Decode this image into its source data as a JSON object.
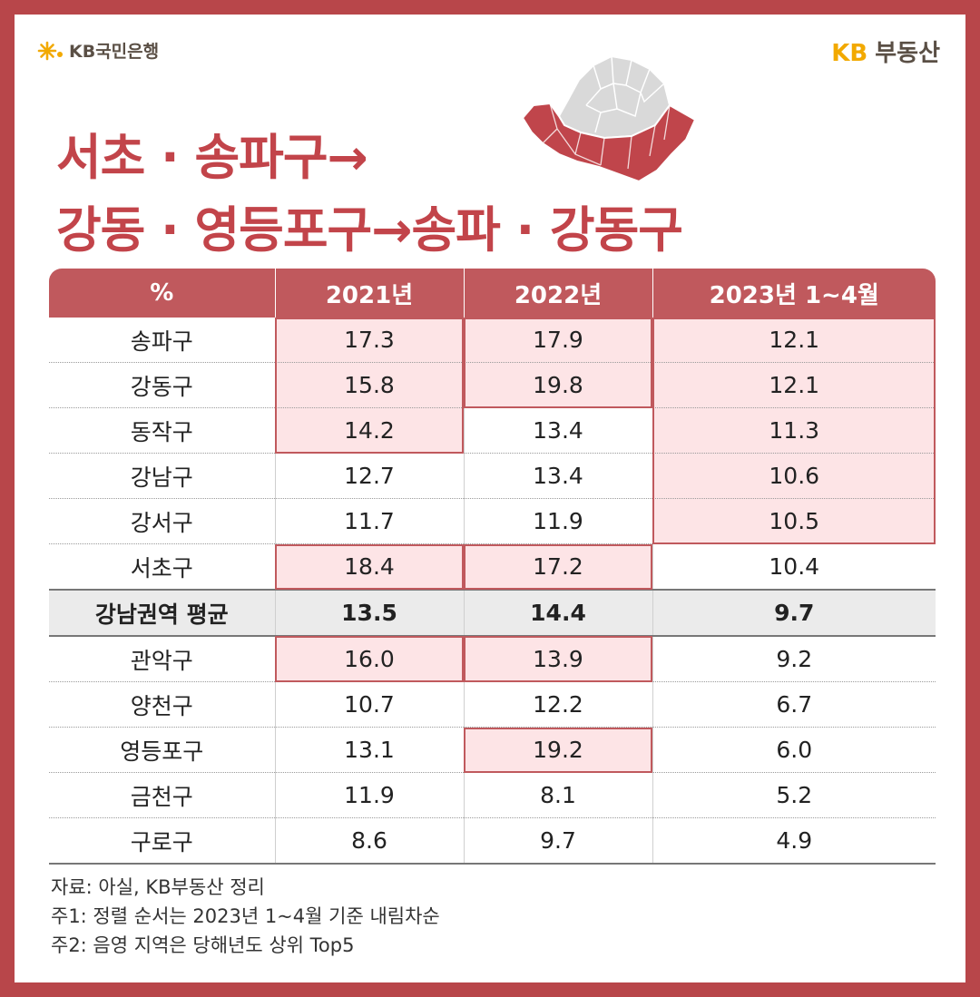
{
  "brand": {
    "bank_logo_text": "KB국민은행",
    "realestate_kb": "KB",
    "realestate_text": "부동산"
  },
  "title": {
    "line1": "서초 · 송파구→",
    "line2": "강동 · 영등포구→송파 · 강동구"
  },
  "colors": {
    "accent": "#c0595d",
    "frame": "#b8464a",
    "highlight_fill": "#fde4e6",
    "map_gray": "#d9d9d9",
    "map_red": "#c0454b",
    "kb_yellow": "#f2a900"
  },
  "chart_data": {
    "type": "table",
    "columns": [
      "%",
      "2021년",
      "2022년",
      "2023년 1~4월"
    ],
    "rows": [
      {
        "district": "송파구",
        "values": [
          "17.3",
          "17.9",
          "12.1"
        ],
        "top5": [
          true,
          true,
          true
        ]
      },
      {
        "district": "강동구",
        "values": [
          "15.8",
          "19.8",
          "12.1"
        ],
        "top5": [
          true,
          true,
          true
        ]
      },
      {
        "district": "동작구",
        "values": [
          "14.2",
          "13.4",
          "11.3"
        ],
        "top5": [
          true,
          false,
          true
        ]
      },
      {
        "district": "강남구",
        "values": [
          "12.7",
          "13.4",
          "10.6"
        ],
        "top5": [
          false,
          false,
          true
        ]
      },
      {
        "district": "강서구",
        "values": [
          "11.7",
          "11.9",
          "10.5"
        ],
        "top5": [
          false,
          false,
          true
        ]
      },
      {
        "district": "서초구",
        "values": [
          "18.4",
          "17.2",
          "10.4"
        ],
        "top5": [
          true,
          true,
          false
        ]
      },
      {
        "district": "강남권역 평균",
        "values": [
          "13.5",
          "14.4",
          "9.7"
        ],
        "top5": [
          false,
          false,
          false
        ],
        "average": true
      },
      {
        "district": "관악구",
        "values": [
          "16.0",
          "13.9",
          "9.2"
        ],
        "top5": [
          true,
          true,
          false
        ]
      },
      {
        "district": "양천구",
        "values": [
          "10.7",
          "12.2",
          "6.7"
        ],
        "top5": [
          false,
          false,
          false
        ]
      },
      {
        "district": "영등포구",
        "values": [
          "13.1",
          "19.2",
          "6.0"
        ],
        "top5": [
          false,
          true,
          false
        ]
      },
      {
        "district": "금천구",
        "values": [
          "11.9",
          "8.1",
          "5.2"
        ],
        "top5": [
          false,
          false,
          false
        ]
      },
      {
        "district": "구로구",
        "values": [
          "8.6",
          "9.7",
          "4.9"
        ],
        "top5": [
          false,
          false,
          false
        ]
      }
    ]
  },
  "notes": [
    "자료: 아실, KB부동산 정리",
    "주1: 정렬 순서는 2023년 1~4월 기준 내림차순",
    "주2: 음영 지역은 당해년도 상위 Top5"
  ]
}
